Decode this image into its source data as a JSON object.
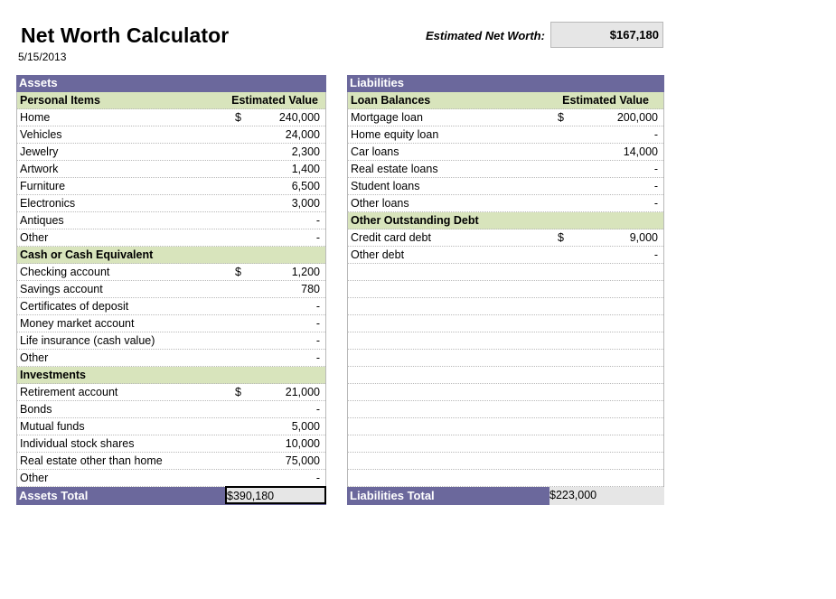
{
  "header": {
    "title": "Net Worth Calculator",
    "date": "5/15/2013",
    "net_worth_label": "Estimated Net Worth:",
    "net_worth_value": "$167,180"
  },
  "assets": {
    "title": "Assets",
    "sections": [
      {
        "name": "Personal Items",
        "value_header": "Estimated Value",
        "rows": [
          {
            "label": "Home",
            "currency": "$",
            "value": "240,000"
          },
          {
            "label": "Vehicles",
            "currency": "",
            "value": "24,000"
          },
          {
            "label": "Jewelry",
            "currency": "",
            "value": "2,300"
          },
          {
            "label": "Artwork",
            "currency": "",
            "value": "1,400"
          },
          {
            "label": "Furniture",
            "currency": "",
            "value": "6,500"
          },
          {
            "label": "Electronics",
            "currency": "",
            "value": "3,000"
          },
          {
            "label": "Antiques",
            "currency": "",
            "value": "-"
          },
          {
            "label": "Other",
            "currency": "",
            "value": "-"
          }
        ]
      },
      {
        "name": "Cash or Cash Equivalent",
        "value_header": "",
        "rows": [
          {
            "label": "Checking account",
            "currency": "$",
            "value": "1,200"
          },
          {
            "label": "Savings account",
            "currency": "",
            "value": "780"
          },
          {
            "label": "Certificates of deposit",
            "currency": "",
            "value": "-"
          },
          {
            "label": "Money market account",
            "currency": "",
            "value": "-"
          },
          {
            "label": "Life insurance (cash value)",
            "currency": "",
            "value": "-"
          },
          {
            "label": "Other",
            "currency": "",
            "value": "-"
          }
        ]
      },
      {
        "name": "Investments",
        "value_header": "",
        "rows": [
          {
            "label": "Retirement account",
            "currency": "$",
            "value": "21,000"
          },
          {
            "label": "Bonds",
            "currency": "",
            "value": "-"
          },
          {
            "label": "Mutual funds",
            "currency": "",
            "value": "5,000"
          },
          {
            "label": "Individual stock shares",
            "currency": "",
            "value": "10,000"
          },
          {
            "label": "Real estate other than home",
            "currency": "",
            "value": "75,000"
          },
          {
            "label": "Other",
            "currency": "",
            "value": "-"
          }
        ]
      }
    ],
    "total_label": "Assets Total",
    "total_currency": "$",
    "total_value": "390,180"
  },
  "liabilities": {
    "title": "Liabilities",
    "sections": [
      {
        "name": "Loan Balances",
        "value_header": "Estimated Value",
        "rows": [
          {
            "label": "Mortgage loan",
            "currency": "$",
            "value": "200,000"
          },
          {
            "label": "Home equity loan",
            "currency": "",
            "value": "-"
          },
          {
            "label": "Car loans",
            "currency": "",
            "value": "14,000"
          },
          {
            "label": "Real estate loans",
            "currency": "",
            "value": "-"
          },
          {
            "label": "Student loans",
            "currency": "",
            "value": "-"
          },
          {
            "label": "Other loans",
            "currency": "",
            "value": "-"
          }
        ]
      },
      {
        "name": "Other Outstanding Debt",
        "value_header": "",
        "rows": [
          {
            "label": "Credit card debt",
            "currency": "$",
            "value": "9,000"
          },
          {
            "label": "Other debt",
            "currency": "",
            "value": "-"
          }
        ]
      }
    ],
    "total_label": "Liabilities Total",
    "total_currency": "$",
    "total_value": "223,000"
  }
}
